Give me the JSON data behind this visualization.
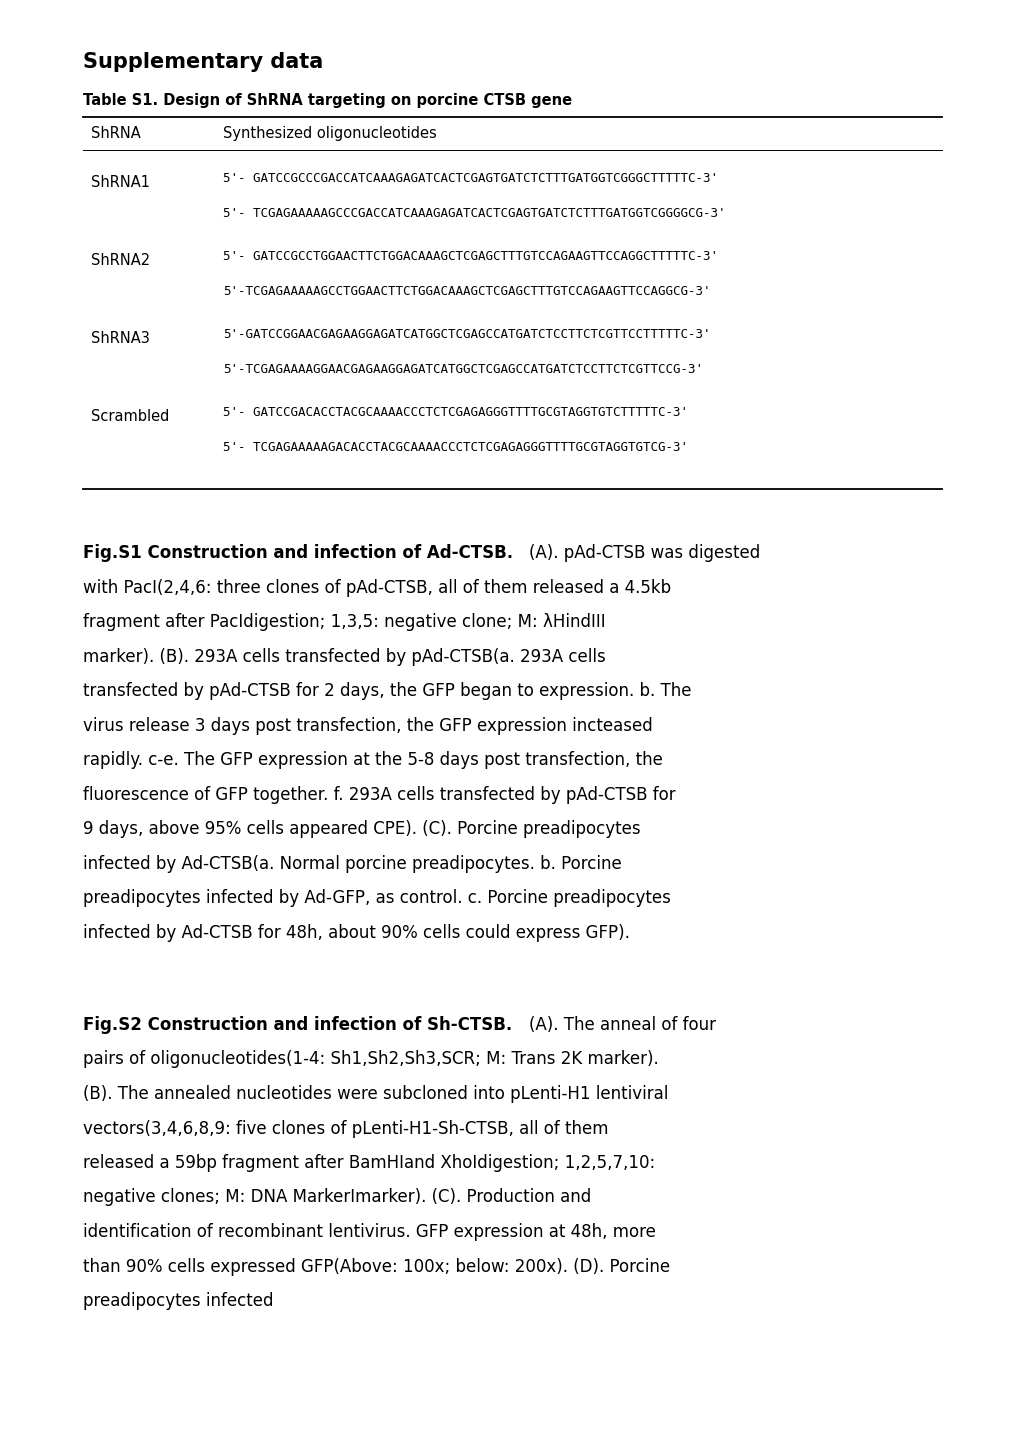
{
  "page_width": 10.2,
  "page_height": 14.43,
  "bg_color": "#ffffff",
  "supplementary_title": "Supplementary data",
  "table_title": "Table S1. Design of ShRNA targeting on porcine CTSB gene",
  "col1_header": "ShRNA",
  "col2_header": "Synthesized oligonucleotides",
  "rows": [
    {
      "label": "ShRNA1",
      "seqs": [
        "5'- GATCCGCCCGACCATCAAAGAGATCACTCGAGTGATCTCTTTGATGGTCGGGCTTTTTC-3'",
        "5'- TCGAGAAAAAGCCCGACCATCAAAGAGATCACTCGAGTGATCTCTTTGATGGTCGGGGCG-3'"
      ]
    },
    {
      "label": "ShRNA2",
      "seqs": [
        "5'- GATCCGCCTGGAACTTCTGGACAAAGCTCGAGCTTTGTCCAGAAGTTCCAGGCTTTTTC-3'",
        "5'-TCGAGAAAAAGCCTGGAACTTCTGGACAAAGCTCGAGCTTTGTCCAGAAGTTCCAGGCG-3'"
      ]
    },
    {
      "label": "ShRNA3",
      "seqs": [
        "5'-GATCCGGAACGAGAAGGAGATCATGGCTCGAGCCATGATCTCCTTCTCGTTCCTTTTTC-3'",
        "5'-TCGAGAAAAGGAACGAGAAGGAGATCATGGCTCGAGCCATGATCTCCTTCTCGTTCCG-3'"
      ]
    },
    {
      "label": "Scrambled",
      "seqs": [
        "5'- GATCCGACACCTACGCAAAACCCTCTCGAGAGGGTTTTGCGTAGGTGTCTTTTTC-3'",
        "5'- TCGAGAAAAAGACACCTACGCAAAACCCTCTCGAGAGGGTTTTGCGTAGGTGTCG-3'"
      ]
    }
  ],
  "fig_s1_bold": "Fig.S1 Construction and infection of Ad-CTSB.",
  "fig_s1_normal": "(A). pAd-CTSB was digested with PacI(2,4,6: three clones of pAd-CTSB, all of them released a 4.5kb fragment after PacIdigestion; 1,3,5: negative clone; M: λHindIII marker). (B). 293A cells transfected by pAd-CTSB(a. 293A cells transfected by pAd-CTSB for 2 days, the GFP began to expression. b. The virus release 3 days post transfection, the GFP expression incteased rapidly. c-e. The GFP expression at the 5-8 days post transfection, the fluorescence of GFP together. f. 293A cells transfected by pAd-CTSB for 9 days, above 95% cells appeared CPE). (C). Porcine preadipocytes infected by Ad-CTSB(a. Normal porcine preadipocytes. b. Porcine preadipocytes infected by Ad-GFP, as control. c. Porcine preadipocytes infected by Ad-CTSB for 48h, about 90% cells could express GFP).",
  "fig_s2_bold": "Fig.S2 Construction and infection of Sh-CTSB.",
  "fig_s2_normal": "(A). The anneal of four pairs of oligonucleotides(1-4: Sh1,Sh2,Sh3,SCR; M: Trans 2K marker). (B). The annealed nucleotides were subcloned into pLenti-H1 lentiviral vectors(3,4,6,8,9: five clones of pLenti-H1-Sh-CTSB, all of them released a 59bp fragment after BamHIand XhoIdigestion; 1,2,5,7,10: negative clones; M: DNA MarkerImarker). (C). Production and identification of recombinant lentivirus. GFP expression at 48h, more than 90% cells expressed GFP(Above: 100x; below: 200x). (D). Porcine preadipocytes infected"
}
